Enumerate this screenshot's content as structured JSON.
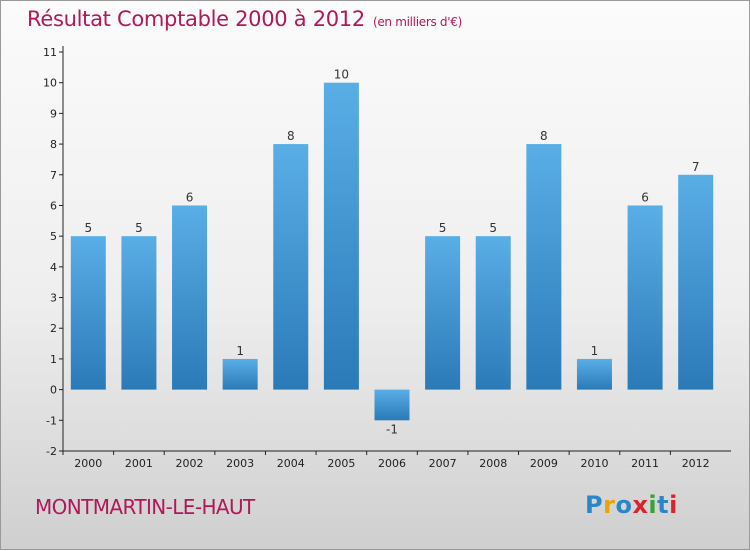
{
  "header": {
    "title": "Résultat Comptable 2000 à 2012",
    "subtitle": "(en milliers d'€)"
  },
  "footer": {
    "town": "MONTMARTIN-LE-HAUT",
    "brand": "Proxiti"
  },
  "colors": {
    "bar_top": "#5aaee6",
    "bar_bottom": "#2a7ab8",
    "accent": "#b0185a"
  },
  "chart_data": {
    "type": "bar",
    "title": "Résultat Comptable 2000 à 2012",
    "subtitle": "(en milliers d'€)",
    "categories": [
      "2000",
      "2001",
      "2002",
      "2003",
      "2004",
      "2005",
      "2006",
      "2007",
      "2008",
      "2009",
      "2010",
      "2011",
      "2012"
    ],
    "values": [
      5,
      5,
      6,
      1,
      8,
      10,
      -1,
      5,
      5,
      8,
      1,
      6,
      7
    ],
    "data_labels": [
      "5",
      "5",
      "6",
      "1",
      "8",
      "10",
      "-1",
      "5",
      "5",
      "8",
      "1",
      "6",
      "7"
    ],
    "y_ticks": [
      "-2",
      "-1",
      "0",
      "1",
      "2",
      "3",
      "4",
      "5",
      "6",
      "7",
      "8",
      "9",
      "10",
      "11"
    ],
    "ylim": [
      -2,
      11
    ],
    "xlabel": "",
    "ylabel": "",
    "grid": false,
    "legend": "none"
  }
}
